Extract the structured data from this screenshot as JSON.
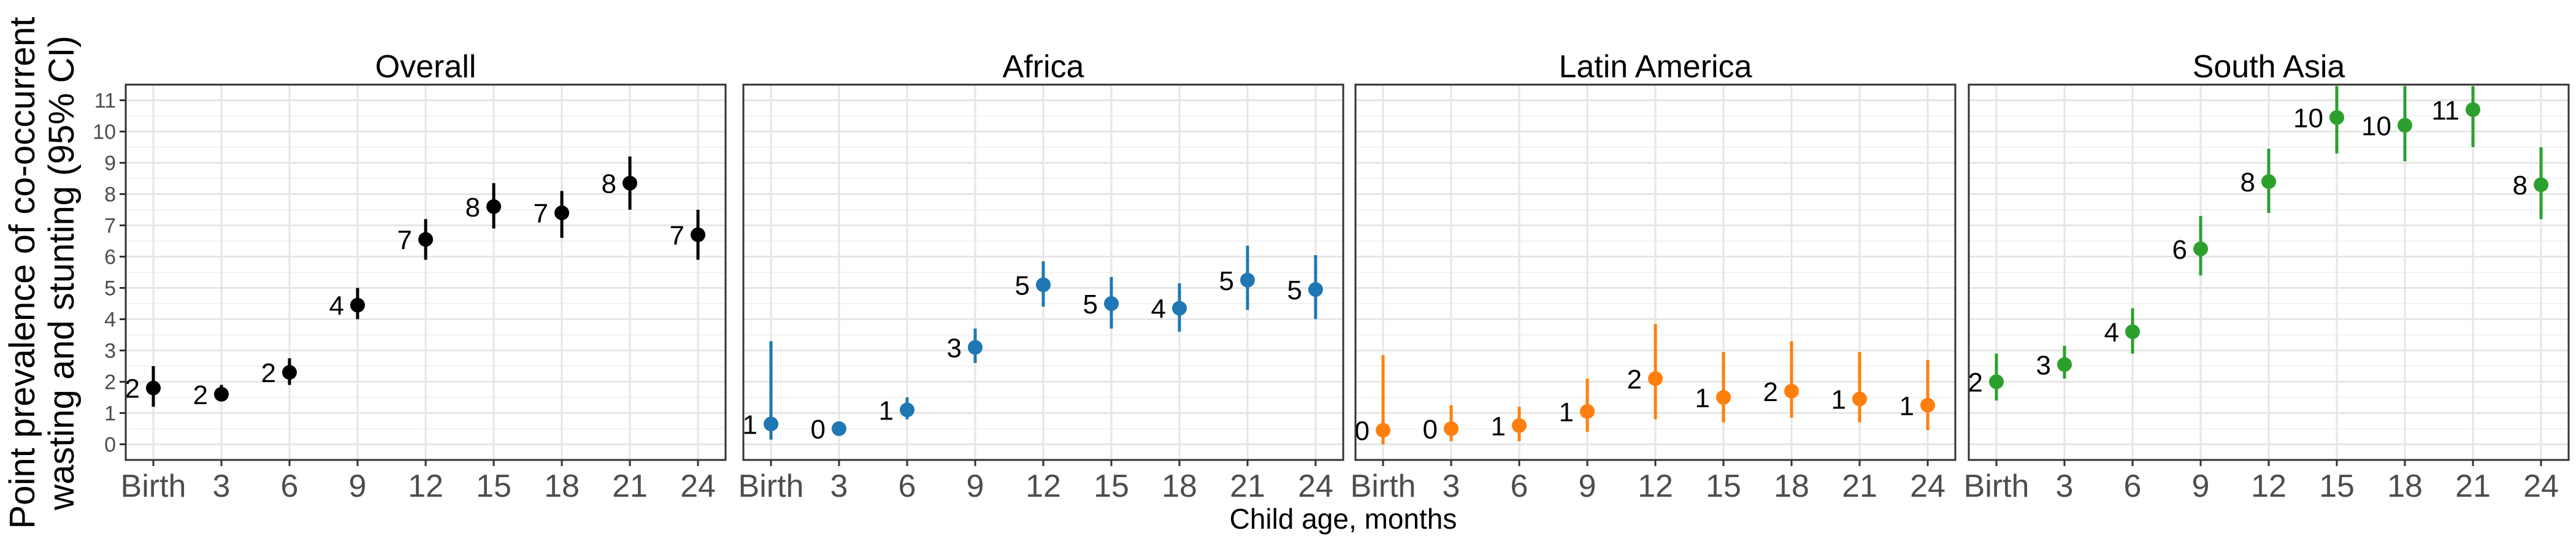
{
  "chart_data": {
    "type": "scatter",
    "ylabel_lines": [
      "Point prevalence of co-occurrent",
      "wasting and stunting (95% CI)"
    ],
    "xlabel": "Child age, months",
    "categories": [
      "Birth",
      "3",
      "6",
      "9",
      "12",
      "15",
      "18",
      "21",
      "24"
    ],
    "y_ticks": [
      0,
      1,
      2,
      3,
      4,
      5,
      6,
      7,
      8,
      9,
      10,
      11
    ],
    "ylim": [
      -0.5,
      11.5
    ],
    "grid": true,
    "panels": [
      {
        "title": "Overall",
        "color": "#000000",
        "values": [
          1.8,
          1.6,
          2.3,
          4.45,
          6.55,
          7.6,
          7.4,
          8.35,
          6.7
        ],
        "ci_low": [
          1.2,
          1.4,
          1.9,
          4.0,
          5.9,
          6.9,
          6.6,
          7.5,
          5.9
        ],
        "ci_high": [
          2.5,
          1.9,
          2.75,
          5.0,
          7.2,
          8.35,
          8.1,
          9.2,
          7.5
        ],
        "labels": [
          "2",
          "2",
          "2",
          "4",
          "7",
          "8",
          "7",
          "8",
          "7"
        ]
      },
      {
        "title": "Africa",
        "color": "#1f77b4",
        "values": [
          0.65,
          0.5,
          1.1,
          3.1,
          5.1,
          4.5,
          4.35,
          5.25,
          4.95
        ],
        "ci_low": [
          0.15,
          0.3,
          0.8,
          2.6,
          4.4,
          3.7,
          3.6,
          4.3,
          4.0
        ],
        "ci_high": [
          3.3,
          0.7,
          1.5,
          3.7,
          5.85,
          5.35,
          5.15,
          6.35,
          6.05
        ],
        "labels": [
          "1",
          "0",
          "1",
          "3",
          "5",
          "5",
          "4",
          "5",
          "5"
        ]
      },
      {
        "title": "Latin America",
        "color": "#ff7f0e",
        "values": [
          0.45,
          0.5,
          0.6,
          1.05,
          2.1,
          1.5,
          1.7,
          1.45,
          1.25
        ],
        "ci_low": [
          0.0,
          0.1,
          0.1,
          0.4,
          0.8,
          0.7,
          0.85,
          0.7,
          0.45
        ],
        "ci_high": [
          2.85,
          1.25,
          1.2,
          2.1,
          3.85,
          2.95,
          3.3,
          2.95,
          2.7
        ],
        "labels": [
          "0",
          "0",
          "1",
          "1",
          "2",
          "1",
          "2",
          "1",
          "1"
        ]
      },
      {
        "title": "South Asia",
        "color": "#2ca02c",
        "values": [
          2.0,
          2.55,
          3.6,
          6.25,
          8.4,
          10.45,
          10.2,
          10.7,
          8.3
        ],
        "ci_low": [
          1.4,
          2.1,
          2.9,
          5.4,
          7.4,
          9.3,
          9.05,
          9.5,
          7.2
        ],
        "ci_high": [
          2.9,
          3.15,
          4.35,
          7.3,
          9.45,
          11.45,
          11.45,
          11.45,
          9.5
        ],
        "labels": [
          "2",
          "3",
          "4",
          "6",
          "8",
          "10",
          "10",
          "11",
          "8"
        ]
      }
    ]
  }
}
